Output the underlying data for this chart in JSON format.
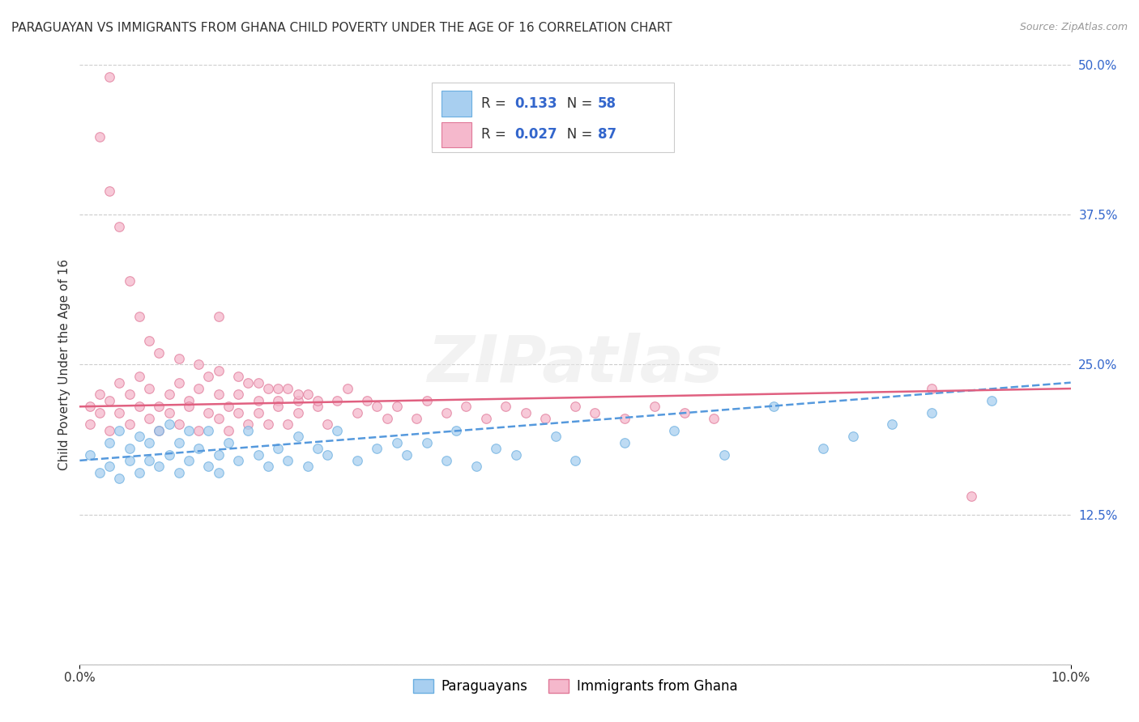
{
  "title": "PARAGUAYAN VS IMMIGRANTS FROM GHANA CHILD POVERTY UNDER THE AGE OF 16 CORRELATION CHART",
  "source": "Source: ZipAtlas.com",
  "ylabel": "Child Poverty Under the Age of 16",
  "xlim": [
    0.0,
    0.1
  ],
  "ylim": [
    0.0,
    0.5
  ],
  "yticks": [
    0.0,
    0.125,
    0.25,
    0.375,
    0.5
  ],
  "background_color": "#ffffff",
  "watermark_text": "ZIPatlas",
  "series": [
    {
      "name": "Paraguayans",
      "R": "0.133",
      "N": "58",
      "color": "#a8cff0",
      "edge_color": "#6aaee0",
      "marker_size": 70,
      "trend_color": "#5599dd",
      "trend_style": "--",
      "x": [
        0.001,
        0.002,
        0.003,
        0.003,
        0.004,
        0.004,
        0.005,
        0.005,
        0.006,
        0.006,
        0.007,
        0.007,
        0.008,
        0.008,
        0.009,
        0.009,
        0.01,
        0.01,
        0.011,
        0.011,
        0.012,
        0.013,
        0.013,
        0.014,
        0.014,
        0.015,
        0.016,
        0.017,
        0.018,
        0.019,
        0.02,
        0.021,
        0.022,
        0.023,
        0.024,
        0.025,
        0.026,
        0.028,
        0.03,
        0.032,
        0.033,
        0.035,
        0.037,
        0.038,
        0.04,
        0.042,
        0.044,
        0.048,
        0.05,
        0.055,
        0.06,
        0.065,
        0.07,
        0.075,
        0.078,
        0.082,
        0.086,
        0.092
      ],
      "y": [
        0.175,
        0.16,
        0.185,
        0.165,
        0.195,
        0.155,
        0.18,
        0.17,
        0.19,
        0.16,
        0.185,
        0.17,
        0.195,
        0.165,
        0.2,
        0.175,
        0.185,
        0.16,
        0.195,
        0.17,
        0.18,
        0.165,
        0.195,
        0.175,
        0.16,
        0.185,
        0.17,
        0.195,
        0.175,
        0.165,
        0.18,
        0.17,
        0.19,
        0.165,
        0.18,
        0.175,
        0.195,
        0.17,
        0.18,
        0.185,
        0.175,
        0.185,
        0.17,
        0.195,
        0.165,
        0.18,
        0.175,
        0.19,
        0.17,
        0.185,
        0.195,
        0.175,
        0.215,
        0.18,
        0.19,
        0.2,
        0.21,
        0.22
      ]
    },
    {
      "name": "Immigrants from Ghana",
      "R": "0.027",
      "N": "87",
      "color": "#f5b8cc",
      "edge_color": "#e07898",
      "marker_size": 70,
      "trend_color": "#e06080",
      "trend_style": "-",
      "x": [
        0.001,
        0.001,
        0.002,
        0.002,
        0.003,
        0.003,
        0.004,
        0.004,
        0.005,
        0.005,
        0.006,
        0.006,
        0.007,
        0.007,
        0.008,
        0.008,
        0.009,
        0.009,
        0.01,
        0.01,
        0.011,
        0.011,
        0.012,
        0.012,
        0.013,
        0.013,
        0.014,
        0.014,
        0.015,
        0.015,
        0.016,
        0.016,
        0.017,
        0.017,
        0.018,
        0.018,
        0.019,
        0.019,
        0.02,
        0.02,
        0.021,
        0.021,
        0.022,
        0.022,
        0.023,
        0.024,
        0.025,
        0.026,
        0.027,
        0.028,
        0.029,
        0.03,
        0.031,
        0.032,
        0.034,
        0.035,
        0.037,
        0.039,
        0.041,
        0.043,
        0.045,
        0.047,
        0.05,
        0.052,
        0.055,
        0.058,
        0.061,
        0.064,
        0.002,
        0.003,
        0.004,
        0.005,
        0.006,
        0.007,
        0.008,
        0.01,
        0.012,
        0.014,
        0.016,
        0.018,
        0.02,
        0.022,
        0.024,
        0.003,
        0.086,
        0.09,
        0.014
      ],
      "y": [
        0.2,
        0.215,
        0.21,
        0.225,
        0.195,
        0.22,
        0.21,
        0.235,
        0.2,
        0.225,
        0.215,
        0.24,
        0.205,
        0.23,
        0.215,
        0.195,
        0.225,
        0.21,
        0.235,
        0.2,
        0.22,
        0.215,
        0.195,
        0.23,
        0.21,
        0.24,
        0.205,
        0.225,
        0.215,
        0.195,
        0.225,
        0.21,
        0.235,
        0.2,
        0.22,
        0.21,
        0.23,
        0.2,
        0.22,
        0.215,
        0.23,
        0.2,
        0.22,
        0.21,
        0.225,
        0.215,
        0.2,
        0.22,
        0.23,
        0.21,
        0.22,
        0.215,
        0.205,
        0.215,
        0.205,
        0.22,
        0.21,
        0.215,
        0.205,
        0.215,
        0.21,
        0.205,
        0.215,
        0.21,
        0.205,
        0.215,
        0.21,
        0.205,
        0.44,
        0.395,
        0.365,
        0.32,
        0.29,
        0.27,
        0.26,
        0.255,
        0.25,
        0.245,
        0.24,
        0.235,
        0.23,
        0.225,
        0.22,
        0.49,
        0.23,
        0.14,
        0.29
      ]
    }
  ],
  "legend": {
    "R1": "0.133",
    "N1": "58",
    "R2": "0.027",
    "N2": "87",
    "color1": "#a8cff0",
    "color2": "#f5b8cc",
    "edge1": "#6aaee0",
    "edge2": "#e07898",
    "text_color": "#333333",
    "val_color": "#3366cc"
  },
  "title_fontsize": 11,
  "axis_label_fontsize": 11,
  "tick_fontsize": 11,
  "tick_color": "#3366cc"
}
